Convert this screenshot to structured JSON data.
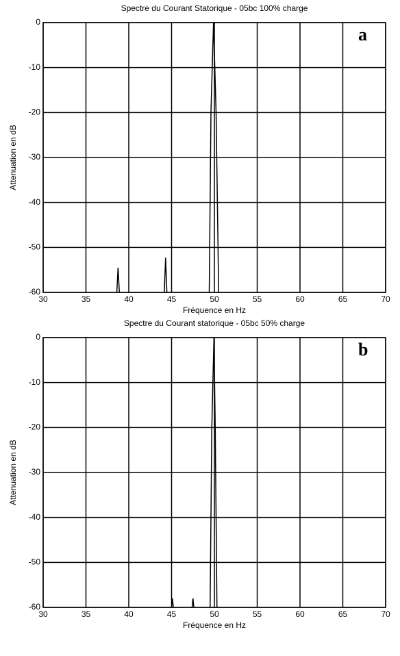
{
  "chart_data": [
    {
      "type": "line",
      "title": "Spectre du Courant Statorique    - 05bc 100% charge",
      "xlabel": "Fréquence en Hz",
      "ylabel": "Attenuation en dB",
      "annotation": "a",
      "x": [
        38.6,
        38.75,
        38.9,
        null,
        44.15,
        44.3,
        44.45,
        null,
        49.4,
        49.6,
        49.9,
        50.2,
        50.5
      ],
      "values": [
        -60,
        -54.5,
        -60,
        null,
        -60,
        -52.3,
        -60,
        null,
        -60,
        -20,
        0,
        -20,
        -60
      ],
      "color": "#000000",
      "xlim": [
        30,
        70
      ],
      "ylim": [
        -60,
        0
      ],
      "xticks": [
        30,
        35,
        40,
        45,
        50,
        55,
        60,
        65,
        70
      ],
      "yticks": [
        0,
        -10,
        -20,
        -30,
        -40,
        -50,
        -60
      ],
      "grid": true
    },
    {
      "type": "line",
      "title": "Spectre du Courant statorique    -  05bc 50% charge",
      "xlabel": "Fréquence en Hz",
      "ylabel": "Attenuation en dB",
      "annotation": "b",
      "x": [
        45.0,
        45.1,
        45.2,
        null,
        47.4,
        47.5,
        47.6,
        null,
        49.5,
        49.7,
        49.95,
        50.1,
        50.3
      ],
      "values": [
        -60,
        -58,
        -60,
        null,
        -60,
        -58,
        -60,
        null,
        -60,
        -20,
        0,
        -20,
        -60
      ],
      "color": "#000000",
      "xlim": [
        30,
        70
      ],
      "ylim": [
        -60,
        0
      ],
      "xticks": [
        30,
        35,
        40,
        45,
        50,
        55,
        60,
        65,
        70
      ],
      "yticks": [
        0,
        -10,
        -20,
        -30,
        -40,
        -50,
        -60
      ],
      "grid": true
    }
  ]
}
